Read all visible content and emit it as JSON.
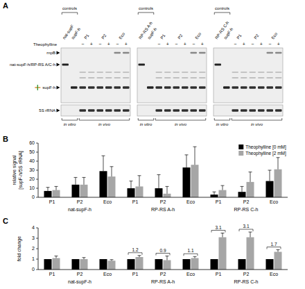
{
  "gel": {
    "panel": "A",
    "treatment_label": "Theophylline",
    "minus": "−",
    "plus": "+",
    "controls_label": "controls",
    "in_vitro": "in vitro",
    "in_vivo": "in vivo",
    "band_labels": [
      "rnpB",
      "nat-supF-h/RP-RS A/C-h",
      "supF-h",
      "5S rRNA"
    ],
    "blots": [
      {
        "controls": [
          "nat-supF",
          "supF-h"
        ],
        "samples": [
          "P1",
          "P2",
          "Eco"
        ]
      },
      {
        "controls": [
          "RP-RS A-h",
          "supF-h"
        ],
        "samples": [
          "P1",
          "P2",
          "Eco"
        ]
      },
      {
        "controls": [
          "RP-RS C-h",
          "supF-h"
        ],
        "samples": [
          "P1",
          "P2",
          "Eco"
        ]
      }
    ]
  },
  "chart_data": [
    {
      "panel": "B",
      "type": "bar",
      "y_label": "relative signal [supF-h/5S rRNA]",
      "categories": [
        "P1",
        "P2",
        "Eco",
        "P1",
        "P2",
        "Eco",
        "P1",
        "P2",
        "Eco"
      ],
      "group_labels": [
        "nat-supF-h",
        "RP-RS A-h",
        "RP-RS C-h"
      ],
      "ylim": [
        0,
        60
      ],
      "yticks": [
        0,
        10,
        20,
        30,
        40,
        50,
        60
      ],
      "legend": "top-right",
      "series": [
        {
          "name": "Theophylline [0 mM]",
          "color": "#000000",
          "values": [
            7,
            14,
            29,
            10,
            10,
            33,
            3,
            6,
            18
          ],
          "errors": [
            4,
            8,
            17,
            8,
            15,
            14,
            3,
            6,
            12
          ]
        },
        {
          "name": "Theophylline [2 mM]",
          "color": "#a6a6a6",
          "values": [
            8,
            14,
            23,
            12,
            4,
            36,
            8,
            17,
            31
          ],
          "errors": [
            4,
            8,
            11,
            12,
            8,
            20,
            5,
            11,
            13
          ]
        }
      ]
    },
    {
      "panel": "C",
      "type": "bar",
      "y_label": "fold change",
      "categories": [
        "P1",
        "P2",
        "Eco",
        "P1",
        "P2",
        "Eco",
        "P1",
        "P2",
        "Eco"
      ],
      "group_labels": [
        "nat-supF-h",
        "RP-RS A-h",
        "RP-RS C-h"
      ],
      "ylim": [
        0,
        4
      ],
      "yticks": [
        0,
        1,
        2,
        3,
        4
      ],
      "series": [
        {
          "color": "#000000",
          "values": [
            1,
            1,
            1,
            1,
            1,
            1,
            1,
            1,
            1
          ]
        },
        {
          "color": "#a6a6a6",
          "values": [
            1.1,
            1.0,
            0.85,
            1.2,
            0.9,
            1.1,
            3.1,
            3.1,
            1.7
          ],
          "errors": [
            0.2,
            0.15,
            0.1,
            0.15,
            0.4,
            0.15,
            0.4,
            0.5,
            0.2
          ],
          "value_labels": [
            null,
            null,
            null,
            "1.2",
            "0.9",
            "1.1",
            "3.1",
            "3.1",
            "1.7"
          ]
        }
      ]
    }
  ]
}
